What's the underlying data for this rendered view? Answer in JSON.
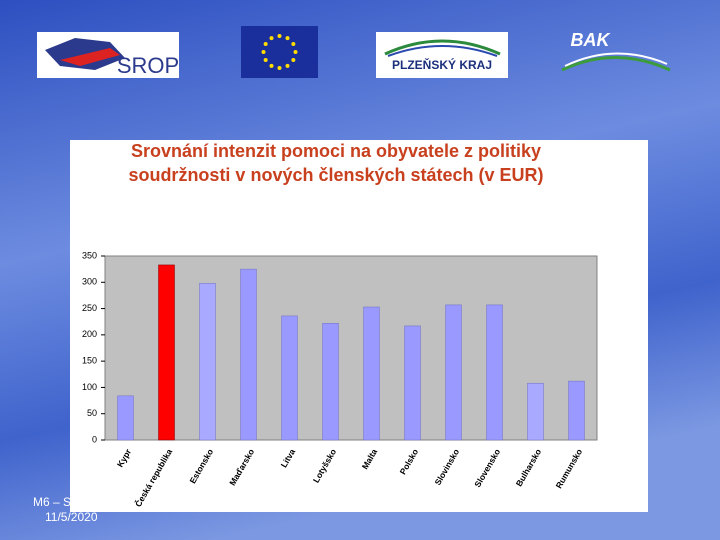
{
  "slide": {
    "logos": [
      "SROP",
      "PLZEŇSKÝ KRAJ",
      "BAK"
    ],
    "footer": {
      "label": "M6 – S",
      "date": "11/5/2020"
    }
  },
  "chart_data": {
    "type": "bar",
    "title": [
      "Srovnání intenzit pomoci na obyvatele z politiky",
      "soudržnosti v nových členských státech (v EUR)"
    ],
    "categories": [
      "Kypr",
      "Česká republika",
      "Estonsko",
      "Maďarsko",
      "Litva",
      "Lotyšsko",
      "Malta",
      "Polsko",
      "Slovinsko",
      "Slovensko",
      "Bulharsko",
      "Rumunsko"
    ],
    "values": [
      84,
      333,
      298,
      325,
      236,
      222,
      253,
      217,
      257,
      257,
      108,
      112
    ],
    "colors": [
      "#9999ff",
      "#ff0000",
      "#a9a9ff",
      "#9999ff",
      "#9999ff",
      "#9999ff",
      "#9999ff",
      "#9999ff",
      "#9999ff",
      "#9999ff",
      "#a9a9ff",
      "#9999ff"
    ],
    "ylim": [
      0,
      350
    ],
    "yticks": [
      0,
      50,
      100,
      150,
      200,
      250,
      300,
      350
    ],
    "grid": false
  }
}
